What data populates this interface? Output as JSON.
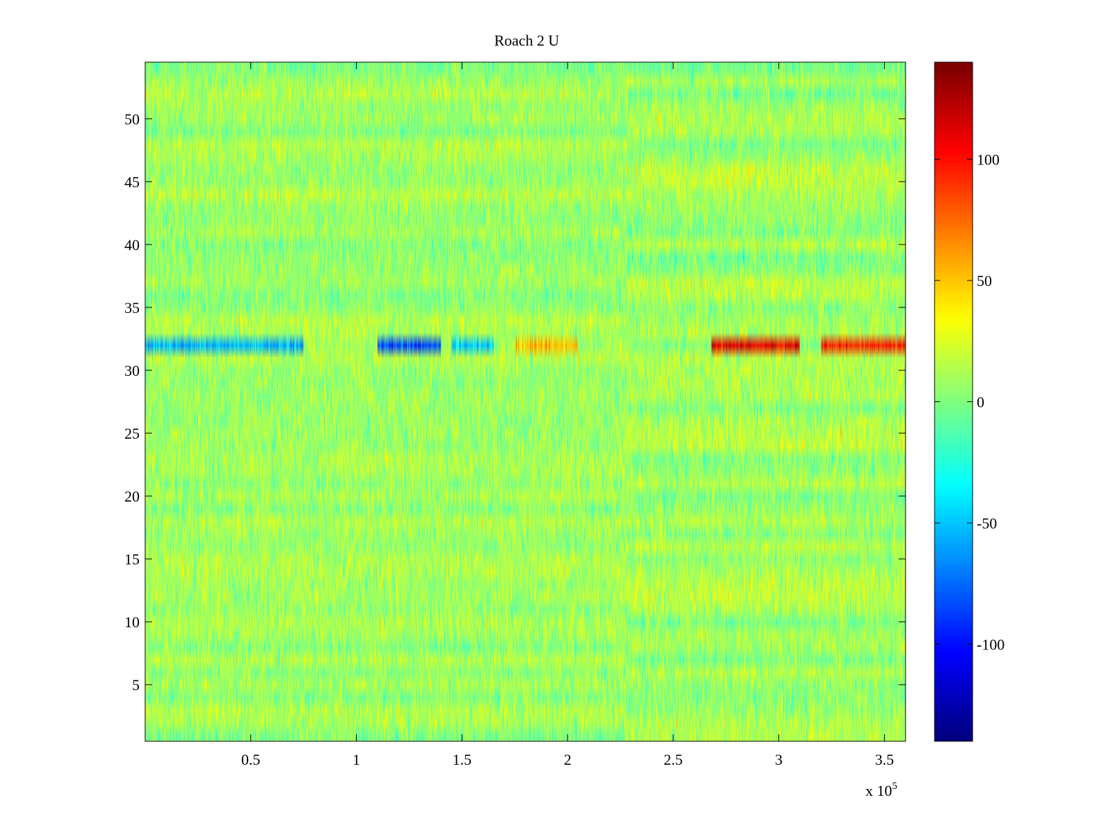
{
  "chart_data": {
    "type": "heatmap",
    "title": "Roach 2 U",
    "xlabel": "",
    "ylabel": "",
    "x_multiplier_label": "x 10",
    "x_multiplier_exponent": "5",
    "xlim": [
      0,
      360000
    ],
    "ylim": [
      0.5,
      54.5
    ],
    "x_ticks": [
      50000,
      100000,
      150000,
      200000,
      250000,
      300000,
      350000
    ],
    "x_tick_labels": [
      "0.5",
      "1",
      "1.5",
      "2",
      "2.5",
      "3",
      "3.5"
    ],
    "y_ticks": [
      5,
      10,
      15,
      20,
      25,
      30,
      35,
      40,
      45,
      50
    ],
    "y_tick_labels": [
      "5",
      "10",
      "15",
      "20",
      "25",
      "30",
      "35",
      "40",
      "45",
      "50"
    ],
    "rows": 54,
    "colorbar": {
      "colormap": "jet",
      "clim": [
        -140,
        140
      ],
      "ticks": [
        -100,
        -50,
        0,
        50,
        100
      ],
      "tick_labels": [
        "-100",
        "-50",
        "0",
        "50",
        "100"
      ]
    },
    "notable_regions": [
      {
        "row": 32,
        "x_range": [
          0,
          75000
        ],
        "value": -55
      },
      {
        "row": 32,
        "x_range": [
          110000,
          140000
        ],
        "value": -85
      },
      {
        "row": 32,
        "x_range": [
          145000,
          165000
        ],
        "value": -50
      },
      {
        "row": 32,
        "x_range": [
          175000,
          205000
        ],
        "value": 55
      },
      {
        "row": 32,
        "x_range": [
          268000,
          310000
        ],
        "value": 110
      },
      {
        "row": 32,
        "x_range": [
          320000,
          360000
        ],
        "value": 95
      }
    ],
    "grid": false
  }
}
